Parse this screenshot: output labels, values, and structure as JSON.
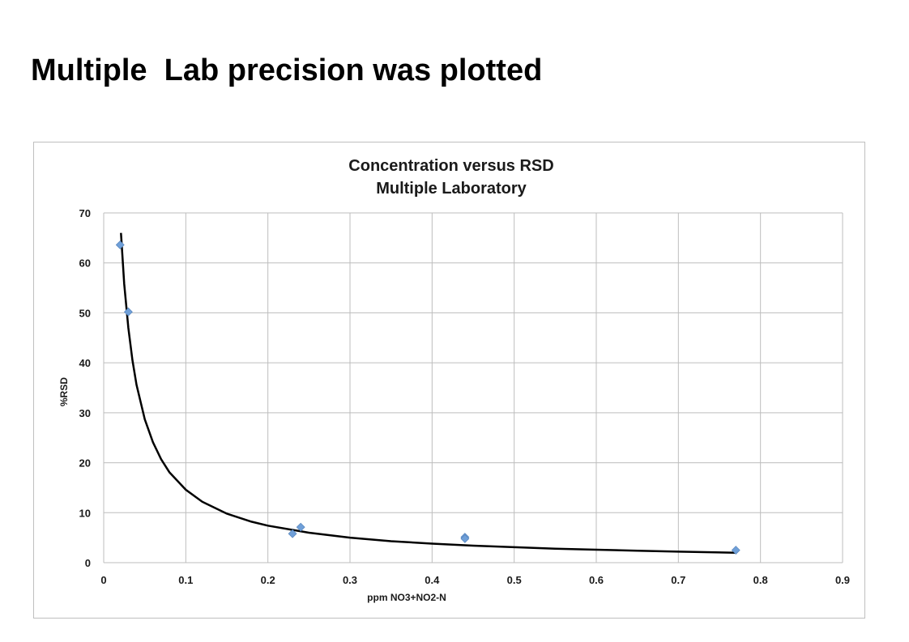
{
  "slide": {
    "title": "Multiple  Lab precision was plotted"
  },
  "chart_data": {
    "type": "scatter",
    "title": "Concentration versus RSD",
    "subtitle": "Multiple Laboratory",
    "xlabel": "ppm NO3+NO2-N",
    "ylabel": "%RSD",
    "xlim": [
      0,
      0.9
    ],
    "ylim": [
      0,
      70
    ],
    "xticks": [
      "0",
      "0.1",
      "0.2",
      "0.3",
      "0.4",
      "0.5",
      "0.6",
      "0.7",
      "0.8",
      "0.9"
    ],
    "yticks": [
      "0",
      "10",
      "20",
      "30",
      "40",
      "50",
      "60",
      "70"
    ],
    "grid": true,
    "legend": "none",
    "series": [
      {
        "marker": "diamond",
        "color": "#6f9fd8",
        "x": [
          0.02,
          0.03,
          0.23,
          0.24,
          0.44,
          0.44,
          0.77
        ],
        "y": [
          63.6,
          50.2,
          5.8,
          7.1,
          5.1,
          4.8,
          2.5
        ]
      }
    ],
    "trendline": {
      "type": "power",
      "color": "#000000",
      "x": [
        0.021,
        0.025,
        0.03,
        0.035,
        0.04,
        0.05,
        0.06,
        0.07,
        0.08,
        0.1,
        0.12,
        0.15,
        0.18,
        0.2,
        0.25,
        0.3,
        0.35,
        0.4,
        0.45,
        0.5,
        0.55,
        0.6,
        0.65,
        0.7,
        0.77
      ],
      "y": [
        66,
        55.8,
        47,
        40.5,
        35.6,
        28.7,
        24.1,
        20.7,
        18.1,
        14.6,
        12.2,
        9.8,
        8.2,
        7.4,
        6.0,
        5.0,
        4.3,
        3.8,
        3.4,
        3.1,
        2.8,
        2.6,
        2.4,
        2.2,
        2.0
      ]
    }
  }
}
